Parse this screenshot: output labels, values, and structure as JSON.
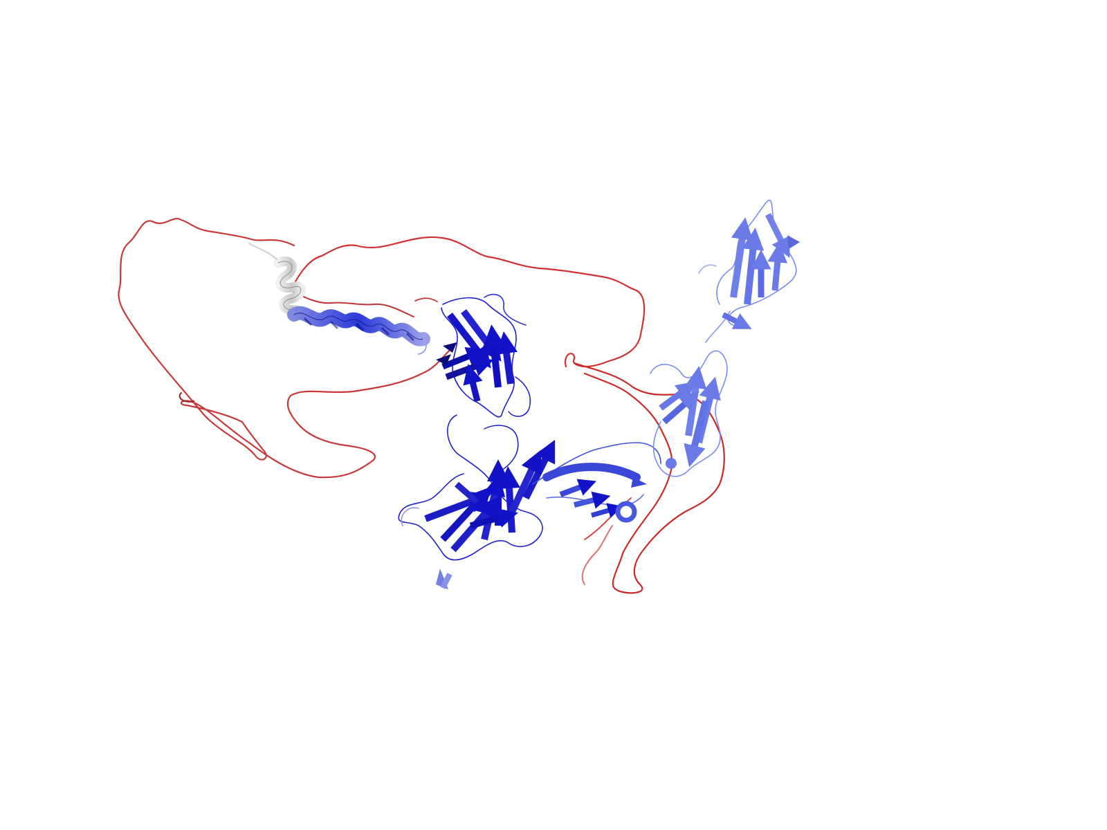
{
  "scene": {
    "background": "#ffffff",
    "subject": "protein-cartoon",
    "colors": {
      "high_confidence": "#1010d0",
      "medium_confidence": "#5a6ae8",
      "low_confidence": "#7a8af0",
      "neutral": "#d8d8d8",
      "disordered": "#d03030",
      "disordered_dark": "#a02020"
    }
  }
}
